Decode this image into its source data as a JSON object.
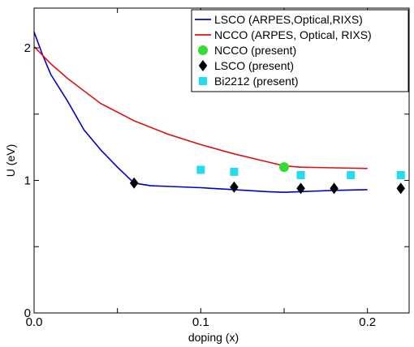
{
  "chart_data": {
    "type": "line",
    "title": "",
    "xlabel": "doping (x)",
    "ylabel": "U (eV)",
    "xlim": [
      0.0,
      0.225
    ],
    "ylim": [
      0,
      2.3
    ],
    "x_ticks": [
      {
        "value": 0.0,
        "label": "0.0"
      },
      {
        "value": 0.05,
        "label": ""
      },
      {
        "value": 0.1,
        "label": "0.1"
      },
      {
        "value": 0.15,
        "label": ""
      },
      {
        "value": 0.2,
        "label": "0.2"
      }
    ],
    "y_ticks": [
      {
        "value": 0,
        "label": "0"
      },
      {
        "value": 0.5,
        "label": ""
      },
      {
        "value": 1,
        "label": "1"
      },
      {
        "value": 1.5,
        "label": ""
      },
      {
        "value": 2,
        "label": "2"
      }
    ],
    "grid": false,
    "legend_position": "top-right",
    "series": [
      {
        "name": "LSCO (ARPES,Optical,RIXS)",
        "kind": "line",
        "color": "#0000cc",
        "x": [
          0.0,
          0.005,
          0.01,
          0.02,
          0.03,
          0.04,
          0.05,
          0.06,
          0.07,
          0.08,
          0.1,
          0.12,
          0.14,
          0.15,
          0.16,
          0.18,
          0.2
        ],
        "y": [
          2.12,
          1.95,
          1.8,
          1.6,
          1.38,
          1.23,
          1.1,
          0.98,
          0.96,
          0.955,
          0.945,
          0.93,
          0.915,
          0.91,
          0.915,
          0.925,
          0.93
        ]
      },
      {
        "name": "NCCO (ARPES, Optical, RIXS)",
        "kind": "line",
        "color": "#dd1111",
        "x": [
          0.0,
          0.01,
          0.02,
          0.04,
          0.06,
          0.08,
          0.1,
          0.12,
          0.14,
          0.15,
          0.16,
          0.18,
          0.2
        ],
        "y": [
          2.01,
          1.88,
          1.77,
          1.58,
          1.45,
          1.35,
          1.27,
          1.2,
          1.14,
          1.11,
          1.1,
          1.095,
          1.09
        ]
      },
      {
        "name": "NCCO (present)",
        "kind": "marker",
        "marker": "circle",
        "color": "#33dd33",
        "x": [
          0.15
        ],
        "y": [
          1.1
        ]
      },
      {
        "name": "LSCO (present)",
        "kind": "marker",
        "marker": "diamond",
        "color": "#000000",
        "x": [
          0.06,
          0.12,
          0.16,
          0.18,
          0.22
        ],
        "y": [
          0.98,
          0.95,
          0.94,
          0.94,
          0.94
        ]
      },
      {
        "name": "Bi2212 (present)",
        "kind": "marker",
        "marker": "square",
        "color": "#22ddee",
        "x": [
          0.1,
          0.12,
          0.16,
          0.19,
          0.22
        ],
        "y": [
          1.08,
          1.065,
          1.04,
          1.04,
          1.04
        ]
      }
    ]
  }
}
